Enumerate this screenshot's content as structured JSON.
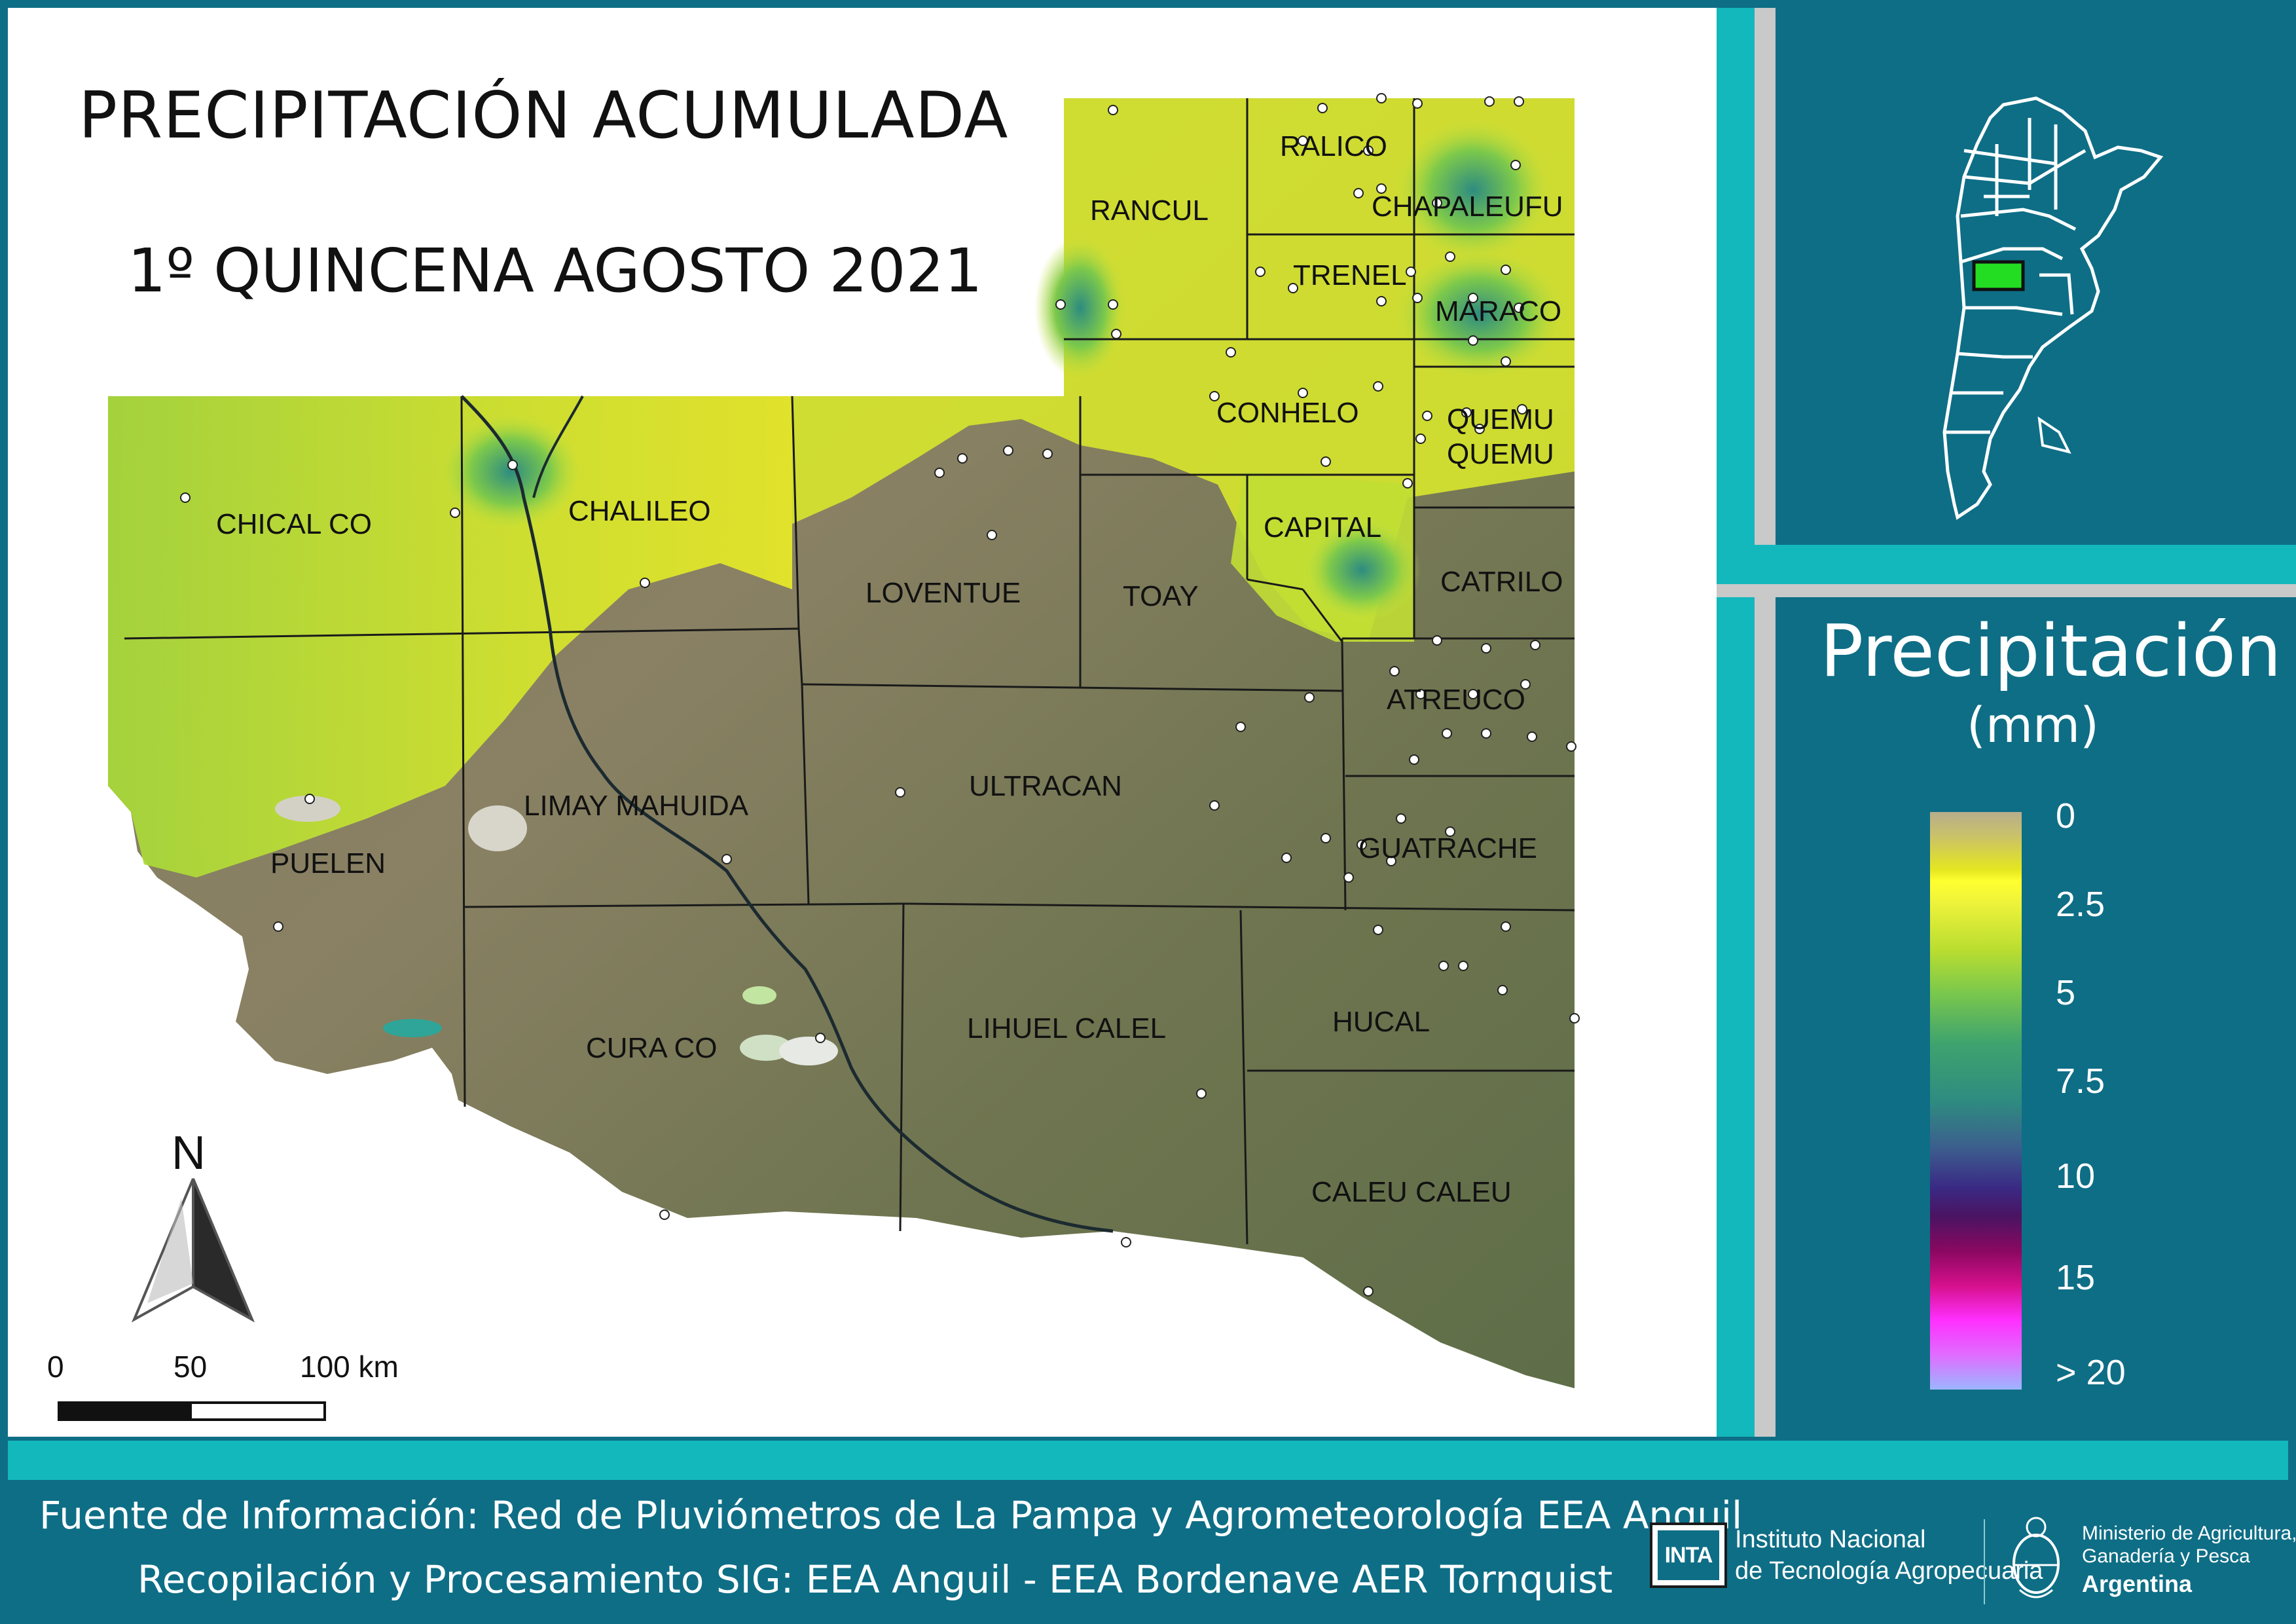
{
  "map": {
    "title_line1": "PRECIPITACIÓN ACUMULADA",
    "title_line2": "1º QUINCENA AGOSTO 2021",
    "departments": [
      "RANCUL",
      "RALICO",
      "CHAPALEUFU",
      "TRENEL",
      "MARACO",
      "CONHELO",
      "QUEMU",
      "QUEMU",
      "CHICAL CO",
      "CHALILEO",
      "LOVENTUE",
      "TOAY",
      "CAPITAL",
      "CATRILO",
      "ATREUCO",
      "ULTRACAN",
      "LIMAY MAHUIDA",
      "PUELEN",
      "GUATRACHE",
      "CURA CO",
      "LIHUEL CALEL",
      "HUCAL",
      "CALEU CALEU"
    ],
    "north_label": "N",
    "scale": {
      "labels": [
        "0",
        "50",
        "100 km"
      ]
    }
  },
  "legend": {
    "title": "Precipitación",
    "unit": "(mm)",
    "ticks": [
      "0",
      "2.5",
      "5",
      "7.5",
      "10",
      "15",
      "> 20"
    ],
    "colors": {
      "low": "#b7ad8d",
      "yellow": "#ffff30",
      "green": "#7dc94b",
      "teal": "#2e8c80",
      "purple": "#3a2a84",
      "magenta": "#d6108c",
      "pink": "#ff30ff",
      "lilac": "#9cb6ff"
    }
  },
  "inset": {
    "highlight_color": "#22dd22"
  },
  "footer": {
    "line1": "Fuente de Información: Red de Pluviómetros de La Pampa y Agrometeorología EEA Anguil",
    "line2": "Recopilación y Procesamiento SIG: EEA Anguil - EEA Bordenave AER Tornquist",
    "inta_logo": "INTA",
    "inta_line1": "Instituto Nacional",
    "inta_line2": "de Tecnología Agropecuaria",
    "ministry_line1": "Ministerio de Agricultura,",
    "ministry_line2": "Ganadería y Pesca",
    "ministry_line3": "Argentina"
  }
}
